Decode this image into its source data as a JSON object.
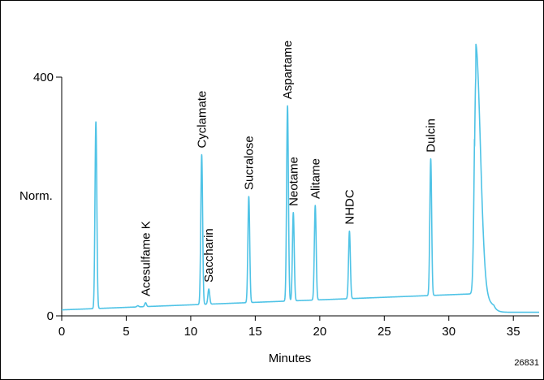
{
  "chart_data": {
    "type": "line",
    "title": "",
    "xlabel": "Minutes",
    "ylabel": "Norm.",
    "xlim": [
      0,
      37
    ],
    "ylim": [
      0,
      400
    ],
    "x_ticks": [
      0,
      5,
      10,
      15,
      20,
      25,
      30,
      35
    ],
    "y_ticks": [
      0,
      400
    ],
    "figure_id": "26831",
    "line_color": "#4fc3e6",
    "grid": false,
    "baseline": {
      "start": 10,
      "end": 37,
      "start_time": 0,
      "end_time": 32.0
    },
    "peaks": [
      {
        "time": 2.65,
        "height": 325,
        "label": ""
      },
      {
        "time": 5.9,
        "height": 17,
        "label": ""
      },
      {
        "time": 6.5,
        "height": 22,
        "label": "Acesulfame K"
      },
      {
        "time": 10.85,
        "height": 270,
        "label": "Cyclamate"
      },
      {
        "time": 11.4,
        "height": 45,
        "label": "Saccharin"
      },
      {
        "time": 14.5,
        "height": 200,
        "label": "Sucralose"
      },
      {
        "time": 17.5,
        "height": 352,
        "label": "Aspartame"
      },
      {
        "time": 17.95,
        "height": 173,
        "label": "Neotame"
      },
      {
        "time": 19.65,
        "height": 185,
        "label": "Alitame"
      },
      {
        "time": 22.3,
        "height": 142,
        "label": "NHDC"
      },
      {
        "time": 28.6,
        "height": 263,
        "label": "Dulcin"
      },
      {
        "time": 32.1,
        "height": 400,
        "label": ""
      }
    ]
  }
}
